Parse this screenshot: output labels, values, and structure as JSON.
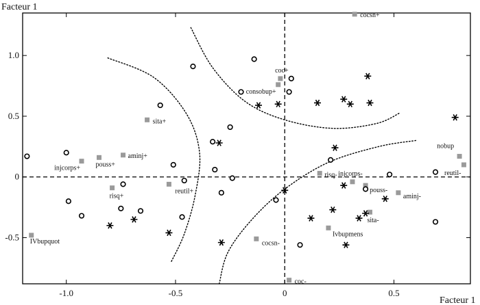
{
  "chart_data": {
    "type": "scatter",
    "title": "",
    "xlabel": "Facteur 1",
    "ylabel": "Facteur 1",
    "xlim": [
      -1.2,
      0.85
    ],
    "ylim": [
      -0.88,
      1.35
    ],
    "xticks": [
      -1.0,
      -0.5,
      0,
      0.5
    ],
    "xtick_labels": [
      "-1.0",
      "-0.5",
      "0",
      "0.5"
    ],
    "yticks": [
      -0.5,
      0,
      0.5,
      1.0
    ],
    "ytick_labels": [
      "-0.5",
      "0",
      "0.5",
      "1.0"
    ],
    "grid": false,
    "reference_lines": {
      "x": 0,
      "y": 0,
      "style": "dashed"
    },
    "series": [
      {
        "marker": "square",
        "color": "#9a9a9a",
        "points": [
          {
            "label": "cocsn+",
            "x": 0.32,
            "y": 1.34
          },
          {
            "label": "coc+",
            "x": -0.02,
            "y": 0.81
          },
          {
            "label": "consobup+",
            "x": -0.03,
            "y": 0.76
          },
          {
            "label": "sita+",
            "x": -0.63,
            "y": 0.47
          },
          {
            "label": "aminj+",
            "x": -0.74,
            "y": 0.18
          },
          {
            "label": "pouss+",
            "x": -0.85,
            "y": 0.16
          },
          {
            "label": "injcorps+",
            "x": -0.93,
            "y": 0.13
          },
          {
            "label": "risq+",
            "x": -0.79,
            "y": -0.09
          },
          {
            "label": "reutil+",
            "x": -0.53,
            "y": -0.06
          },
          {
            "label": "nobup",
            "x": 0.8,
            "y": 0.17
          },
          {
            "label": "reutil-",
            "x": 0.82,
            "y": 0.1
          },
          {
            "label": "risq-",
            "x": 0.16,
            "y": 0.03
          },
          {
            "label": "injcorps-",
            "x": 0.31,
            "y": -0.04
          },
          {
            "label": "pouss-",
            "x": 0.37,
            "y": -0.07
          },
          {
            "label": "aminj-",
            "x": 0.52,
            "y": -0.13
          },
          {
            "label": "sita-",
            "x": 0.39,
            "y": -0.29
          },
          {
            "label": "Ivbupmens",
            "x": 0.2,
            "y": -0.42
          },
          {
            "label": "cocsn-",
            "x": -0.13,
            "y": -0.51
          },
          {
            "label": "coc-",
            "x": 0.02,
            "y": -0.85
          },
          {
            "label": "IVbupquot",
            "x": -1.16,
            "y": -0.48
          }
        ]
      },
      {
        "marker": "circle",
        "points": [
          {
            "x": -1.18,
            "y": 0.17
          },
          {
            "x": -1.0,
            "y": 0.2
          },
          {
            "x": -0.99,
            "y": -0.2
          },
          {
            "x": -0.93,
            "y": -0.32
          },
          {
            "x": -0.74,
            "y": -0.06
          },
          {
            "x": -0.75,
            "y": -0.26
          },
          {
            "x": -0.66,
            "y": -0.28
          },
          {
            "x": -0.57,
            "y": 0.59
          },
          {
            "x": -0.47,
            "y": -0.33
          },
          {
            "x": -0.51,
            "y": 0.1
          },
          {
            "x": -0.46,
            "y": -0.03
          },
          {
            "x": -0.42,
            "y": 0.91
          },
          {
            "x": -0.33,
            "y": 0.29
          },
          {
            "x": -0.32,
            "y": 0.06
          },
          {
            "x": -0.29,
            "y": -0.13
          },
          {
            "x": -0.25,
            "y": 0.41
          },
          {
            "x": -0.24,
            "y": -0.01
          },
          {
            "x": -0.14,
            "y": 0.97
          },
          {
            "x": -0.2,
            "y": 0.7
          },
          {
            "x": -0.04,
            "y": -0.19
          },
          {
            "x": 0.02,
            "y": 0.7
          },
          {
            "x": 0.03,
            "y": 0.81
          },
          {
            "x": 0.07,
            "y": -0.56
          },
          {
            "x": 0.21,
            "y": 0.14
          },
          {
            "x": 0.37,
            "y": -0.1
          },
          {
            "x": 0.48,
            "y": 0.02
          },
          {
            "x": 0.69,
            "y": 0.04
          },
          {
            "x": 0.69,
            "y": -0.37
          }
        ]
      },
      {
        "marker": "asterisk",
        "points": [
          {
            "x": -0.8,
            "y": -0.4
          },
          {
            "x": -0.69,
            "y": -0.35
          },
          {
            "x": -0.53,
            "y": -0.46
          },
          {
            "x": -0.3,
            "y": 0.28
          },
          {
            "x": -0.29,
            "y": -0.54
          },
          {
            "x": -0.12,
            "y": 0.59
          },
          {
            "x": -0.03,
            "y": 0.6
          },
          {
            "x": 0.0,
            "y": -0.11
          },
          {
            "x": 0.15,
            "y": 0.61
          },
          {
            "x": 0.12,
            "y": -0.34
          },
          {
            "x": 0.23,
            "y": 0.24
          },
          {
            "x": 0.22,
            "y": -0.27
          },
          {
            "x": 0.27,
            "y": -0.07
          },
          {
            "x": 0.27,
            "y": 0.64
          },
          {
            "x": 0.3,
            "y": 0.6
          },
          {
            "x": 0.28,
            "y": -0.56
          },
          {
            "x": 0.34,
            "y": -0.34
          },
          {
            "x": 0.37,
            "y": -0.3
          },
          {
            "x": 0.38,
            "y": 0.83
          },
          {
            "x": 0.39,
            "y": 0.61
          },
          {
            "x": 0.46,
            "y": -0.18
          },
          {
            "x": 0.78,
            "y": 0.49
          }
        ]
      }
    ],
    "curves": [
      {
        "name": "left-arc",
        "points": [
          [
            -0.81,
            0.98
          ],
          [
            -0.6,
            0.82
          ],
          [
            -0.45,
            0.52
          ],
          [
            -0.39,
            0.2
          ],
          [
            -0.41,
            -0.15
          ],
          [
            -0.46,
            -0.47
          ],
          [
            -0.52,
            -0.7
          ]
        ]
      },
      {
        "name": "top-arc",
        "points": [
          [
            -0.43,
            1.23
          ],
          [
            -0.33,
            0.9
          ],
          [
            -0.18,
            0.62
          ],
          [
            0.0,
            0.47
          ],
          [
            0.22,
            0.4
          ],
          [
            0.42,
            0.44
          ],
          [
            0.53,
            0.53
          ]
        ]
      },
      {
        "name": "bottom-arc",
        "points": [
          [
            -0.3,
            -0.88
          ],
          [
            -0.26,
            -0.62
          ],
          [
            -0.15,
            -0.35
          ],
          [
            0.0,
            -0.1
          ],
          [
            0.2,
            0.12
          ],
          [
            0.43,
            0.25
          ],
          [
            0.6,
            0.3
          ]
        ]
      }
    ]
  }
}
